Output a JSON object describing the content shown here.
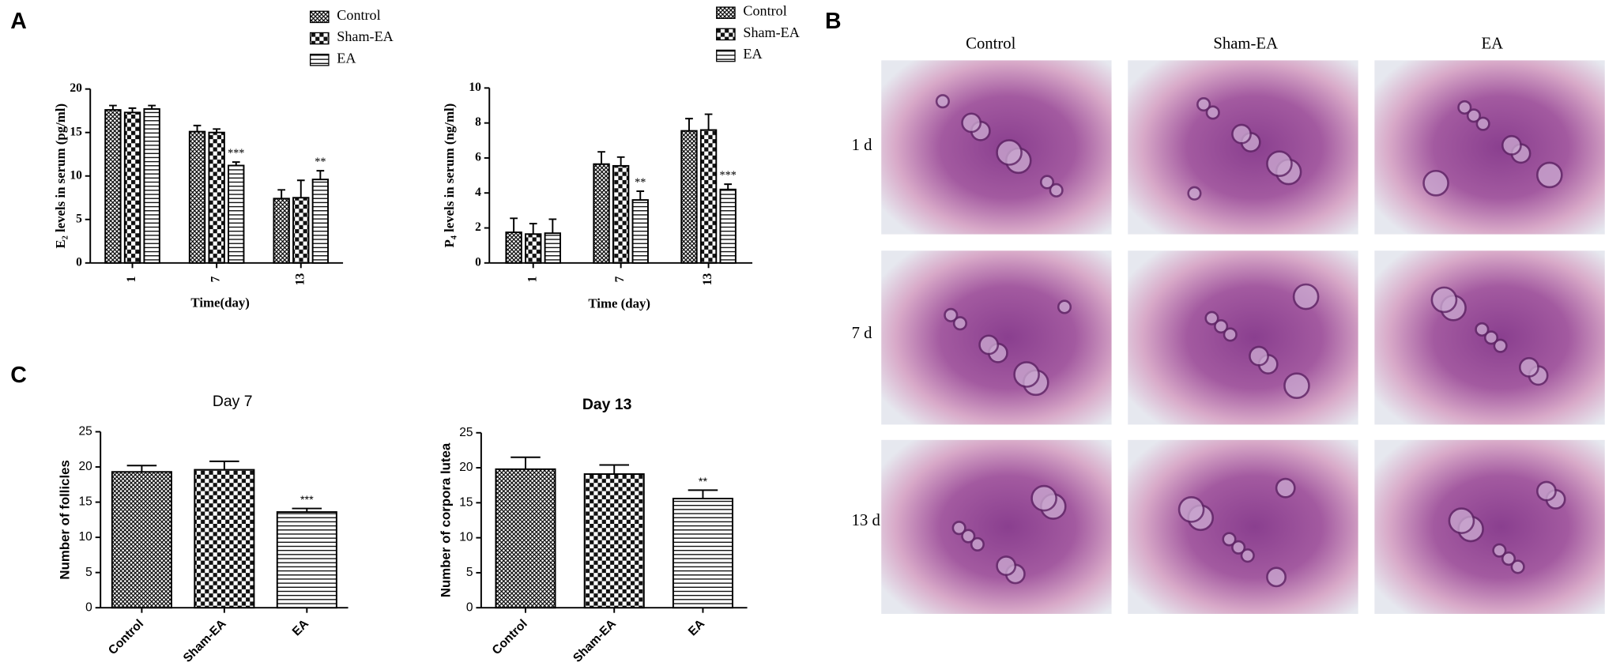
{
  "panels": [
    "A",
    "B",
    "C"
  ],
  "histology": {
    "columns": [
      "Control",
      "Sham-EA",
      "EA"
    ],
    "rows": [
      "1 d",
      "7 d",
      "13 d"
    ]
  },
  "chart_data": [
    {
      "type": "bar",
      "y_label": "E₂ levels in serum (pg/ml)",
      "x_label": "Time(day)",
      "categories": [
        "1",
        "7",
        "13"
      ],
      "series": [
        {
          "name": "Control",
          "pattern": "crosshatch",
          "values": [
            17.6,
            15.1,
            7.4
          ],
          "errors": [
            0.5,
            0.7,
            1.0
          ],
          "annotations": [
            null,
            null,
            null
          ]
        },
        {
          "name": "Sham-EA",
          "pattern": "checker",
          "values": [
            17.3,
            15.0,
            7.5
          ],
          "errors": [
            0.5,
            0.4,
            2.0
          ],
          "annotations": [
            null,
            null,
            null
          ]
        },
        {
          "name": "EA",
          "pattern": "hlines",
          "values": [
            17.7,
            11.2,
            9.6
          ],
          "errors": [
            0.4,
            0.4,
            1.0
          ],
          "annotations": [
            null,
            "***",
            "**"
          ]
        }
      ],
      "ylim": [
        0,
        20
      ],
      "yticks": [
        0,
        5,
        10,
        15,
        20
      ]
    },
    {
      "type": "bar",
      "y_label": "P₄ levels in serum (ng/ml)",
      "x_label": "Time (day)",
      "categories": [
        "1",
        "7",
        "13"
      ],
      "series": [
        {
          "name": "Control",
          "pattern": "crosshatch",
          "values": [
            1.75,
            5.65,
            7.55
          ],
          "errors": [
            0.8,
            0.7,
            0.7
          ],
          "annotations": [
            null,
            null,
            null
          ]
        },
        {
          "name": "Sham-EA",
          "pattern": "checker",
          "values": [
            1.65,
            5.55,
            7.6
          ],
          "errors": [
            0.6,
            0.5,
            0.9
          ],
          "annotations": [
            null,
            null,
            null
          ]
        },
        {
          "name": "EA",
          "pattern": "hlines",
          "values": [
            1.7,
            3.6,
            4.2
          ],
          "errors": [
            0.8,
            0.5,
            0.3
          ],
          "annotations": [
            null,
            "**",
            "***"
          ]
        }
      ],
      "ylim": [
        0,
        10
      ],
      "yticks": [
        0,
        2,
        4,
        6,
        8,
        10
      ]
    },
    {
      "type": "bar",
      "title": "Day 7",
      "y_label": "Number of follicles",
      "categories": [
        "Control",
        "Sham-EA",
        "EA"
      ],
      "patterns": [
        "crosshatch",
        "checker",
        "hlines"
      ],
      "values": [
        19.3,
        19.6,
        13.6
      ],
      "errors": [
        0.9,
        1.2,
        0.5
      ],
      "annotations": [
        null,
        null,
        "***"
      ],
      "ylim": [
        0,
        25
      ],
      "yticks": [
        0,
        5,
        10,
        15,
        20,
        25
      ]
    },
    {
      "type": "bar",
      "title": "Day 13",
      "title_bold": true,
      "y_label": "Number of corpora lutea",
      "categories": [
        "Control",
        "Sham-EA",
        "EA"
      ],
      "patterns": [
        "crosshatch",
        "checker",
        "hlines"
      ],
      "values": [
        19.8,
        19.1,
        15.6
      ],
      "errors": [
        1.7,
        1.3,
        1.2
      ],
      "annotations": [
        null,
        null,
        "**"
      ],
      "ylim": [
        0,
        25
      ],
      "yticks": [
        0,
        5,
        10,
        15,
        20,
        25
      ]
    }
  ]
}
